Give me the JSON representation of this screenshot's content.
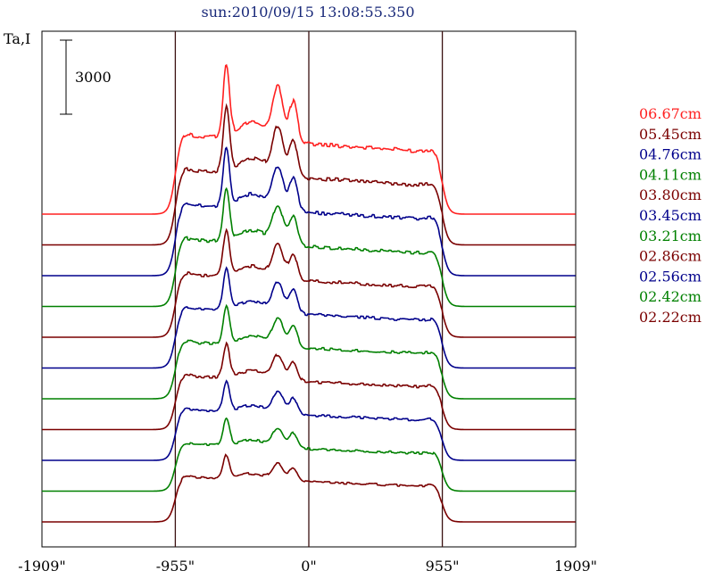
{
  "chart_data": {
    "type": "line",
    "title": "sun:2010/09/15 13:08:55.350",
    "ylabel": "Ta,I",
    "scale_bar_label": "3000",
    "scale_bar_value": 3000,
    "x_ticks": [
      {
        "value": -1909,
        "label": "-1909\""
      },
      {
        "value": -955,
        "label": "-955\""
      },
      {
        "value": 0,
        "label": "0\""
      },
      {
        "value": 955,
        "label": "955\""
      },
      {
        "value": 1909,
        "label": "1909\""
      }
    ],
    "xlim": [
      -1909,
      1909
    ],
    "vertical_lines": [
      -955,
      0,
      955
    ],
    "grid": false,
    "legend_position": "right",
    "series": [
      {
        "name": "06.67cm",
        "color": "#ff2020",
        "baseline": 0,
        "scale": 1.0
      },
      {
        "name": "05.45cm",
        "color": "#7a0000",
        "baseline": 1,
        "scale": 0.95
      },
      {
        "name": "04.76cm",
        "color": "#00008b",
        "baseline": 2,
        "scale": 0.9
      },
      {
        "name": "04.11cm",
        "color": "#008000",
        "baseline": 3,
        "scale": 0.85
      },
      {
        "name": "03.80cm",
        "color": "#7a0000",
        "baseline": 4,
        "scale": 0.8
      },
      {
        "name": "03.45cm",
        "color": "#00008b",
        "baseline": 5,
        "scale": 0.76
      },
      {
        "name": "03.21cm",
        "color": "#008000",
        "baseline": 6,
        "scale": 0.72
      },
      {
        "name": "02.86cm",
        "color": "#7a0000",
        "baseline": 7,
        "scale": 0.68
      },
      {
        "name": "02.56cm",
        "color": "#00008b",
        "baseline": 8,
        "scale": 0.64
      },
      {
        "name": "02.42cm",
        "color": "#008000",
        "baseline": 9,
        "scale": 0.6
      },
      {
        "name": "02.22cm",
        "color": "#7a0000",
        "baseline": 10,
        "scale": 0.57
      }
    ]
  }
}
